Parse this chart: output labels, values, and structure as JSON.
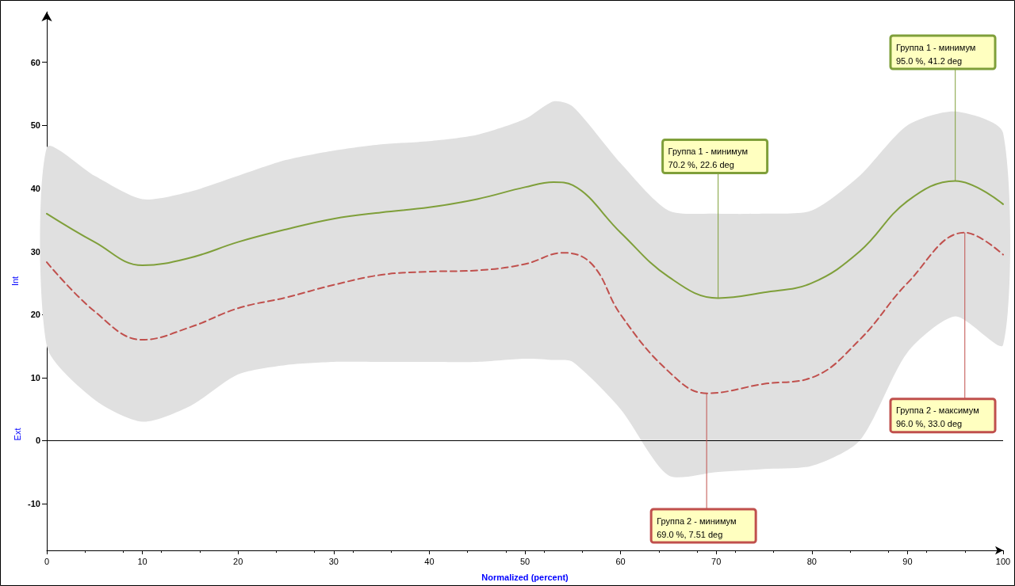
{
  "chart_data": {
    "type": "line",
    "xlabel": "Normalized (percent)",
    "ylabel": "Int",
    "xlim": [
      0,
      100
    ],
    "xticks": [
      0,
      10,
      20,
      30,
      40,
      50,
      60,
      70,
      80,
      90,
      100
    ],
    "ylim": [
      -17.4,
      68
    ],
    "yticks": [
      -10,
      0,
      10,
      20,
      30,
      40,
      50,
      60
    ],
    "grid": false,
    "series": [
      {
        "type": "line",
        "color": "#7f9f3a",
        "line_style": "solid",
        "x": [
          0,
          5,
          10,
          15,
          20,
          25,
          30,
          35,
          40,
          45,
          50,
          53,
          55,
          60,
          65,
          70.2,
          75,
          80,
          85,
          90,
          95,
          100
        ],
        "values": [
          36,
          31.5,
          27.8,
          29,
          31.5,
          33.5,
          35.2,
          36.2,
          37,
          38.3,
          40.2,
          41,
          40.5,
          33,
          26,
          22.6,
          23.5,
          25,
          30,
          38,
          41.2,
          37.5
        ]
      },
      {
        "type": "line",
        "color": "#c0504d",
        "line_style": "dashed",
        "x": [
          0,
          5,
          10,
          15,
          20,
          25,
          30,
          35,
          40,
          45,
          50,
          54,
          57,
          60,
          65,
          69,
          75,
          80,
          85,
          90,
          96,
          100
        ],
        "values": [
          28.3,
          20.5,
          16,
          18,
          21,
          22.7,
          24.7,
          26.3,
          26.8,
          27,
          28,
          29.8,
          28,
          20,
          11,
          7.51,
          9,
          10,
          16,
          25,
          33,
          29.5
        ]
      },
      {
        "type": "line",
        "color": "#e0e0e0",
        "x": [
          0,
          5,
          10,
          15,
          20,
          25,
          30,
          35,
          40,
          45,
          50,
          53,
          55,
          60,
          65,
          70,
          75,
          80,
          85,
          90,
          95,
          100
        ],
        "values": [
          null,
          null,
          null,
          null,
          null,
          null,
          null,
          null,
          null,
          null,
          null,
          null,
          null,
          null,
          null,
          null,
          null,
          null,
          null,
          null,
          null,
          null
        ],
        "upper": [
          46.5,
          42,
          38.3,
          39.5,
          42,
          44.5,
          46,
          47,
          47.5,
          48.5,
          51,
          53.8,
          53,
          44,
          36.5,
          36,
          36,
          36.5,
          42,
          50,
          52.2,
          48.8
        ],
        "lower": [
          15,
          6.5,
          3,
          5.5,
          10.5,
          12,
          12.5,
          12.5,
          12.5,
          12.5,
          13,
          12.8,
          12.5,
          5,
          -5.5,
          -5,
          -4.5,
          -4,
          0,
          14,
          19.7,
          15.2
        ]
      }
    ],
    "ref_lines": [
      {
        "axis": "y",
        "value": 0,
        "color": "#000000"
      }
    ],
    "annotations": [
      "Ext",
      {
        "text": "Группа 1 - минимум\n70.2 %, 22.6 deg",
        "x": 70.2,
        "y": 22.6
      },
      {
        "text": "Группа 1 - минимум\n95.0 %, 41.2 deg",
        "x": 95,
        "y": 41.2
      },
      {
        "text": "Группа 2 - минимум\n69.0 %, 7.51 deg",
        "x": 69,
        "y": 7.51
      },
      {
        "text": "Группа 2 - максимум\n96.0 %, 33.0 deg",
        "x": 96,
        "y": 33
      }
    ]
  }
}
